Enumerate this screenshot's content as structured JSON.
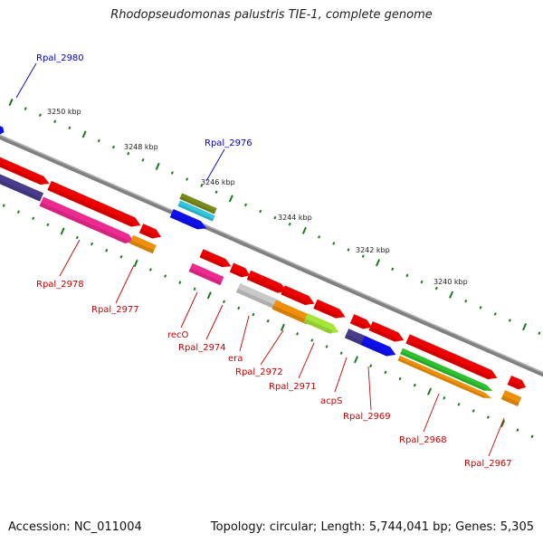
{
  "title": "Rhodopseudomonas palustris TIE-1, complete genome",
  "footer": {
    "accession": "Accession: NC_011004",
    "topology": "Topology: circular; Length: 5,744,041 bp; Genes: 5,305"
  },
  "colors": {
    "backbone": "#808080",
    "tick": "#1a7a1a",
    "label_red": "#cc0000",
    "label_blue": "#0000cc",
    "callout_red": "#cc0000",
    "callout_blue": "#0000cc"
  },
  "ticks": [
    {
      "label": "3250 kbp"
    },
    {
      "label": "3248 kbp"
    },
    {
      "label": "3246 kbp"
    },
    {
      "label": "3244 kbp"
    },
    {
      "label": "3242 kbp"
    },
    {
      "label": "3240 kbp"
    }
  ],
  "gene_labels": [
    {
      "name": "Rpal_2980",
      "color": "blue"
    },
    {
      "name": "Rpal_2976",
      "color": "blue"
    },
    {
      "name": "Rpal_2978",
      "color": "red"
    },
    {
      "name": "Rpal_2977",
      "color": "red"
    },
    {
      "name": "recO",
      "color": "red"
    },
    {
      "name": "Rpal_2974",
      "color": "red"
    },
    {
      "name": "era",
      "color": "red"
    },
    {
      "name": "Rpal_2972",
      "color": "red"
    },
    {
      "name": "Rpal_2971",
      "color": "red"
    },
    {
      "name": "acpS",
      "color": "red"
    },
    {
      "name": "Rpal_2969",
      "color": "red"
    },
    {
      "name": "Rpal_2968",
      "color": "red"
    },
    {
      "name": "Rpal_2967",
      "color": "red"
    }
  ],
  "feature_colors": {
    "red": "#ee0000",
    "darkred": "#b80000",
    "pink": "#ee2a90",
    "purple": "#4a3c8c",
    "blue": "#1010ee",
    "cyan": "#33c6e0",
    "olive": "#7a8a1a",
    "orange": "#f0900a",
    "green": "#2ec02e",
    "lime": "#a6e63a",
    "gray": "#c8c8c8"
  }
}
